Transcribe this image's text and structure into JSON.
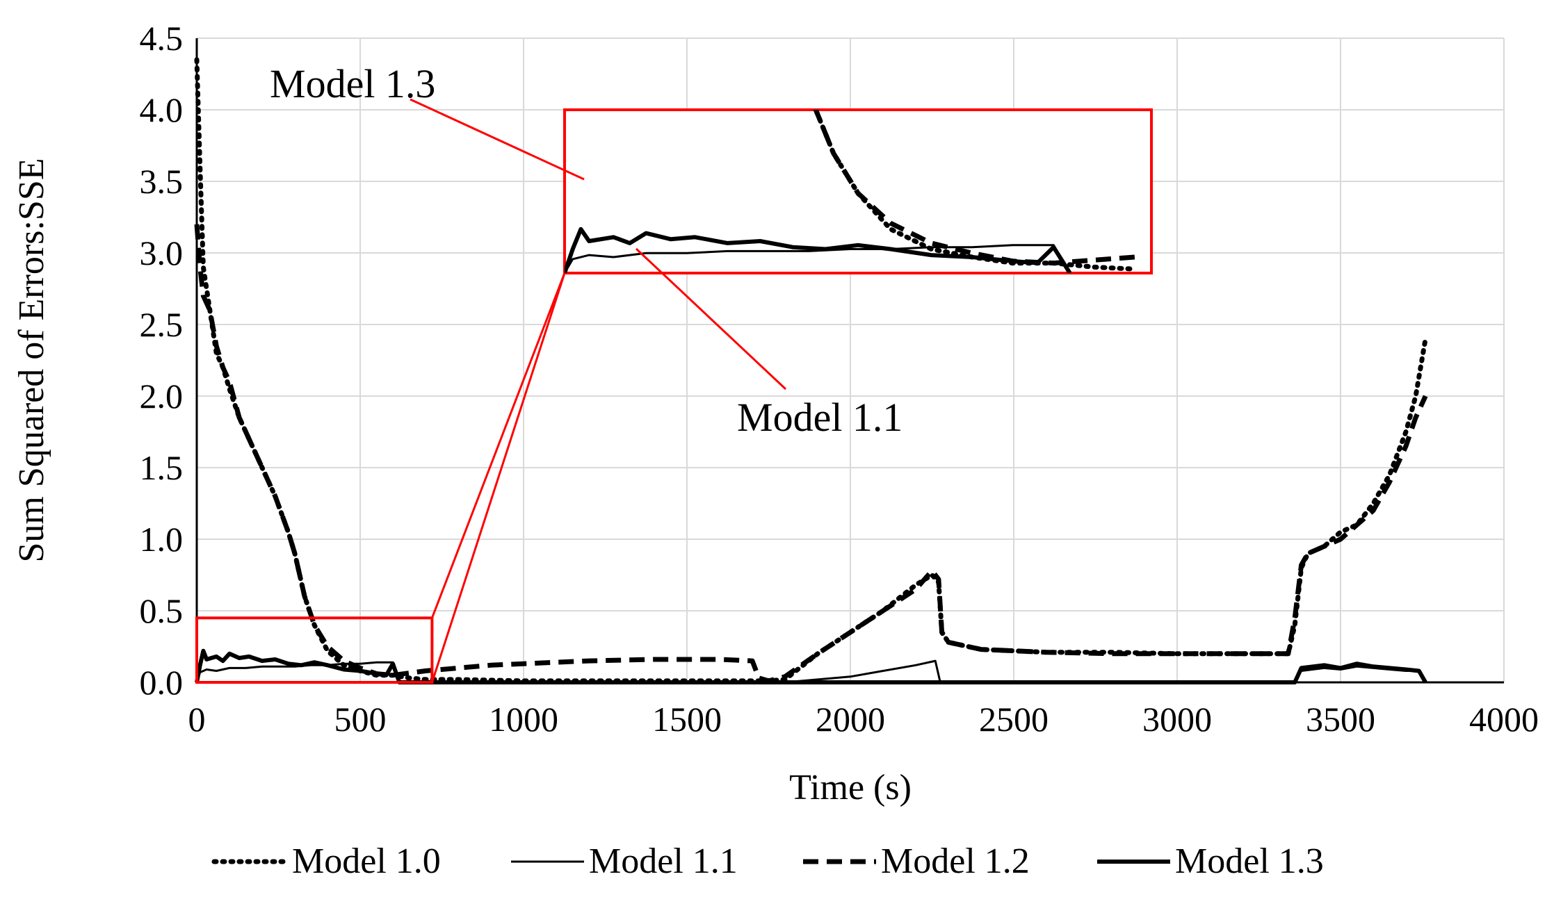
{
  "chart_data": {
    "type": "line",
    "title": "",
    "xlabel": "Time (s)",
    "ylabel": "Sum Squared of Errors:SSE",
    "xlim": [
      0,
      4000
    ],
    "ylim": [
      0,
      4.5
    ],
    "x_ticks": [
      "0",
      "500",
      "1000",
      "1500",
      "2000",
      "2500",
      "3000",
      "3500",
      "4000"
    ],
    "y_ticks": [
      "0.0",
      "0.5",
      "1.0",
      "1.5",
      "2.0",
      "2.5",
      "3.0",
      "3.5",
      "4.0",
      "4.5"
    ],
    "grid": true,
    "legend_position": "bottom",
    "series": [
      {
        "name": "Model 1.0",
        "style": "dotted",
        "color": "#000000",
        "points": [
          [
            0,
            4.35
          ],
          [
            10,
            3.6
          ],
          [
            20,
            2.9
          ],
          [
            40,
            2.6
          ],
          [
            60,
            2.3
          ],
          [
            80,
            2.2
          ],
          [
            100,
            2.05
          ],
          [
            130,
            1.85
          ],
          [
            160,
            1.7
          ],
          [
            200,
            1.5
          ],
          [
            240,
            1.3
          ],
          [
            280,
            1.05
          ],
          [
            300,
            0.9
          ],
          [
            330,
            0.6
          ],
          [
            360,
            0.4
          ],
          [
            400,
            0.22
          ],
          [
            450,
            0.12
          ],
          [
            500,
            0.08
          ],
          [
            550,
            0.05
          ],
          [
            600,
            0.05
          ],
          [
            650,
            0.03
          ],
          [
            700,
            0.02
          ],
          [
            800,
            0.02
          ],
          [
            1000,
            0.01
          ],
          [
            1200,
            0.01
          ],
          [
            1500,
            0.01
          ],
          [
            1700,
            0.01
          ],
          [
            1750,
            0.01
          ],
          [
            1800,
            0.02
          ],
          [
            1900,
            0.2
          ],
          [
            2000,
            0.35
          ],
          [
            2100,
            0.5
          ],
          [
            2200,
            0.68
          ],
          [
            2250,
            0.75
          ],
          [
            2270,
            0.7
          ],
          [
            2280,
            0.35
          ],
          [
            2300,
            0.28
          ],
          [
            2400,
            0.23
          ],
          [
            2600,
            0.21
          ],
          [
            2800,
            0.21
          ],
          [
            3000,
            0.2
          ],
          [
            3200,
            0.2
          ],
          [
            3340,
            0.2
          ],
          [
            3360,
            0.4
          ],
          [
            3380,
            0.8
          ],
          [
            3400,
            0.9
          ],
          [
            3450,
            0.95
          ],
          [
            3500,
            1.05
          ],
          [
            3550,
            1.1
          ],
          [
            3600,
            1.25
          ],
          [
            3650,
            1.45
          ],
          [
            3700,
            1.75
          ],
          [
            3730,
            2.0
          ],
          [
            3760,
            2.4
          ]
        ]
      },
      {
        "name": "Model 1.1",
        "style": "thin-solid",
        "color": "#000000",
        "points": [
          [
            0,
            0.0
          ],
          [
            10,
            0.07
          ],
          [
            30,
            0.09
          ],
          [
            60,
            0.08
          ],
          [
            100,
            0.1
          ],
          [
            150,
            0.1
          ],
          [
            200,
            0.11
          ],
          [
            250,
            0.11
          ],
          [
            300,
            0.11
          ],
          [
            350,
            0.12
          ],
          [
            400,
            0.12
          ],
          [
            450,
            0.13
          ],
          [
            500,
            0.13
          ],
          [
            550,
            0.14
          ],
          [
            600,
            0.14
          ],
          [
            620,
            0.0
          ],
          [
            1000,
            0.0
          ],
          [
            1500,
            0.0
          ],
          [
            1800,
            0.0
          ],
          [
            1900,
            0.02
          ],
          [
            2000,
            0.04
          ],
          [
            2100,
            0.08
          ],
          [
            2200,
            0.12
          ],
          [
            2260,
            0.15
          ],
          [
            2275,
            0.0
          ],
          [
            3360,
            0.0
          ],
          [
            3380,
            0.08
          ],
          [
            3450,
            0.1
          ],
          [
            3500,
            0.09
          ],
          [
            3550,
            0.11
          ],
          [
            3600,
            0.1
          ],
          [
            3650,
            0.09
          ],
          [
            3700,
            0.08
          ],
          [
            3740,
            0.08
          ],
          [
            3760,
            0.0
          ]
        ]
      },
      {
        "name": "Model 1.2",
        "style": "dashed",
        "color": "#000000",
        "points": [
          [
            0,
            3.2
          ],
          [
            10,
            2.9
          ],
          [
            20,
            2.7
          ],
          [
            40,
            2.6
          ],
          [
            60,
            2.35
          ],
          [
            80,
            2.2
          ],
          [
            100,
            2.1
          ],
          [
            130,
            1.85
          ],
          [
            160,
            1.7
          ],
          [
            200,
            1.5
          ],
          [
            240,
            1.3
          ],
          [
            280,
            1.05
          ],
          [
            300,
            0.9
          ],
          [
            330,
            0.6
          ],
          [
            360,
            0.4
          ],
          [
            400,
            0.25
          ],
          [
            450,
            0.15
          ],
          [
            500,
            0.1
          ],
          [
            550,
            0.06
          ],
          [
            600,
            0.05
          ],
          [
            700,
            0.08
          ],
          [
            800,
            0.1
          ],
          [
            900,
            0.12
          ],
          [
            1000,
            0.13
          ],
          [
            1200,
            0.15
          ],
          [
            1400,
            0.16
          ],
          [
            1600,
            0.16
          ],
          [
            1700,
            0.15
          ],
          [
            1720,
            0.03
          ],
          [
            1750,
            0.01
          ],
          [
            1800,
            0.04
          ],
          [
            1900,
            0.2
          ],
          [
            2000,
            0.35
          ],
          [
            2100,
            0.5
          ],
          [
            2200,
            0.65
          ],
          [
            2250,
            0.78
          ],
          [
            2270,
            0.72
          ],
          [
            2280,
            0.35
          ],
          [
            2300,
            0.28
          ],
          [
            2400,
            0.23
          ],
          [
            2600,
            0.21
          ],
          [
            2800,
            0.2
          ],
          [
            3000,
            0.2
          ],
          [
            3200,
            0.2
          ],
          [
            3340,
            0.2
          ],
          [
            3360,
            0.45
          ],
          [
            3380,
            0.82
          ],
          [
            3400,
            0.9
          ],
          [
            3450,
            0.95
          ],
          [
            3500,
            1.0
          ],
          [
            3550,
            1.1
          ],
          [
            3600,
            1.2
          ],
          [
            3650,
            1.4
          ],
          [
            3700,
            1.65
          ],
          [
            3730,
            1.85
          ],
          [
            3760,
            2.0
          ]
        ]
      },
      {
        "name": "Model 1.3",
        "style": "thick-solid",
        "color": "#000000",
        "points": [
          [
            0,
            0.0
          ],
          [
            10,
            0.12
          ],
          [
            20,
            0.22
          ],
          [
            30,
            0.16
          ],
          [
            60,
            0.18
          ],
          [
            80,
            0.15
          ],
          [
            100,
            0.2
          ],
          [
            130,
            0.17
          ],
          [
            160,
            0.18
          ],
          [
            200,
            0.15
          ],
          [
            240,
            0.16
          ],
          [
            280,
            0.13
          ],
          [
            320,
            0.12
          ],
          [
            360,
            0.14
          ],
          [
            400,
            0.12
          ],
          [
            450,
            0.09
          ],
          [
            500,
            0.08
          ],
          [
            550,
            0.06
          ],
          [
            580,
            0.05
          ],
          [
            600,
            0.13
          ],
          [
            620,
            0.0
          ],
          [
            1000,
            0.0
          ],
          [
            1500,
            0.0
          ],
          [
            2000,
            0.0
          ],
          [
            2200,
            0.0
          ],
          [
            2280,
            0.0
          ],
          [
            3000,
            0.0
          ],
          [
            3360,
            0.0
          ],
          [
            3380,
            0.1
          ],
          [
            3450,
            0.12
          ],
          [
            3500,
            0.1
          ],
          [
            3550,
            0.13
          ],
          [
            3600,
            0.11
          ],
          [
            3650,
            0.1
          ],
          [
            3700,
            0.09
          ],
          [
            3740,
            0.08
          ],
          [
            3760,
            0.0
          ]
        ]
      }
    ],
    "annotations": [
      {
        "label": "Model 1.3",
        "target": "Model 1.3"
      },
      {
        "label": "Model 1.1",
        "target": "Model 1.1"
      }
    ]
  }
}
